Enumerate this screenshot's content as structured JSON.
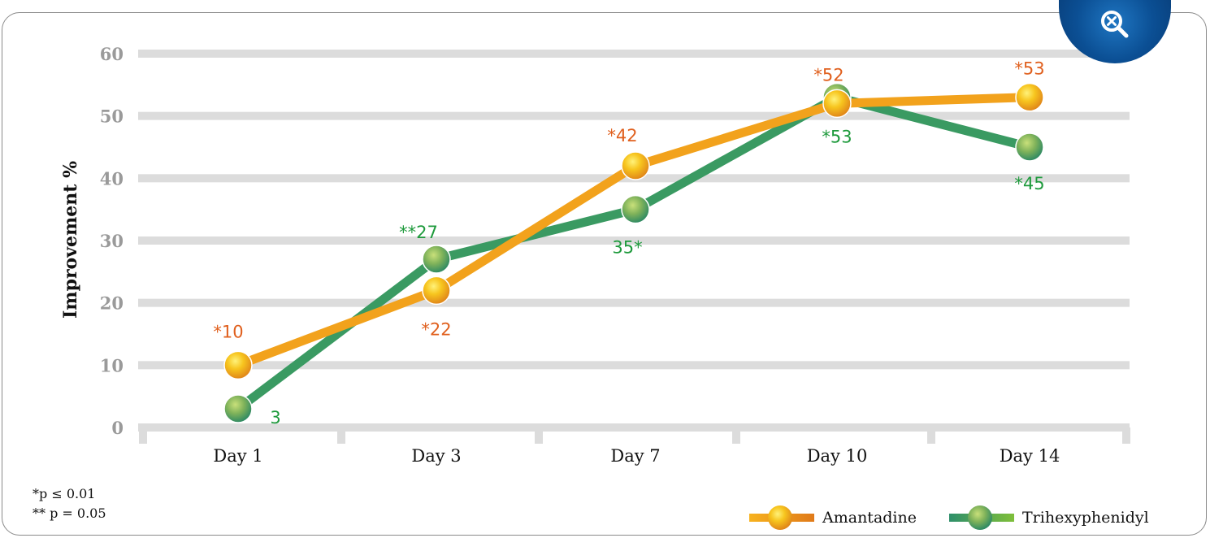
{
  "zoom_button": {
    "icon": "search-close-icon"
  },
  "footnotes": [
    "*p ≤ 0.01",
    "** p = 0.05"
  ],
  "legend": [
    {
      "name": "Amantadine",
      "color": "#f0a21f"
    },
    {
      "name": "Trihexyphenidyl",
      "color": "#3a9a5a"
    }
  ],
  "chart_data": {
    "type": "line",
    "title": "",
    "xlabel": "",
    "ylabel": "Improvement %",
    "ylim": [
      0,
      60
    ],
    "yticks": [
      0,
      10,
      20,
      30,
      40,
      50,
      60
    ],
    "categories": [
      "Day 1",
      "Day 3",
      "Day 7",
      "Day 10",
      "Day 14"
    ],
    "grid": true,
    "legend_position": "bottom-right",
    "series": [
      {
        "name": "Amantadine",
        "color": "#f0a21f",
        "label_color": "#e0601e",
        "values": [
          10,
          22,
          42,
          52,
          53
        ],
        "labels": [
          "*10",
          "*22",
          "*42",
          "*52",
          "*53"
        ]
      },
      {
        "name": "Trihexyphenidyl",
        "color": "#3a9a5a",
        "label_color": "#1e9a3c",
        "values": [
          3,
          27,
          35,
          53,
          45
        ],
        "labels": [
          "3",
          "**27",
          "35*",
          "*53",
          "*45"
        ]
      }
    ]
  }
}
